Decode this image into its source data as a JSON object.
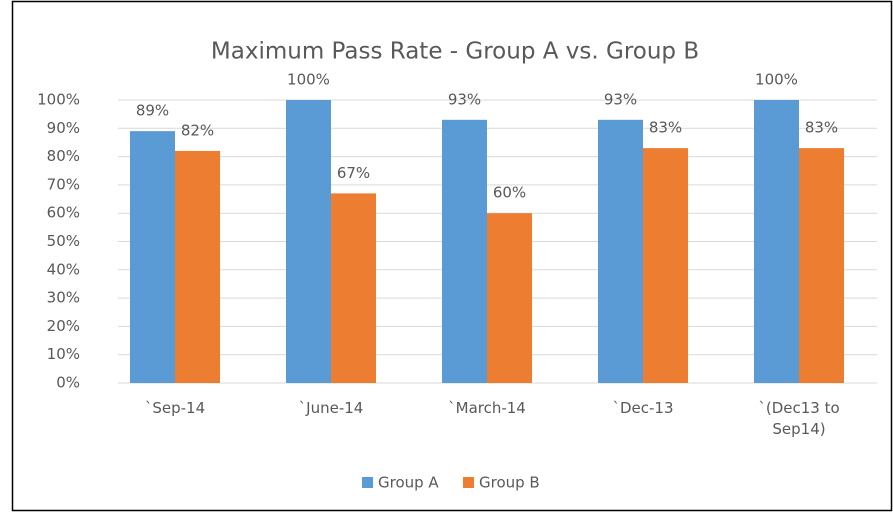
{
  "chart_data": {
    "type": "bar",
    "title": "Maximum Pass Rate - Group A vs. Group B",
    "categories": [
      "`Sep-14",
      "`June-14",
      "`March-14",
      "`Dec-13",
      "`(Dec13 to Sep14)"
    ],
    "series": [
      {
        "name": "Group A",
        "color": "#5b9bd5",
        "values": [
          89,
          100,
          93,
          93,
          100
        ],
        "value_labels": [
          "89%",
          "100%",
          "93%",
          "93%",
          "100%"
        ]
      },
      {
        "name": "Group B",
        "color": "#ed7d31",
        "values": [
          82,
          67,
          60,
          83,
          83
        ],
        "value_labels": [
          "82%",
          "67%",
          "60%",
          "83%",
          "83%"
        ]
      }
    ],
    "ylim": [
      0,
      100
    ],
    "yticks": [
      {
        "value": 0,
        "label": "0%"
      },
      {
        "value": 10,
        "label": "10%"
      },
      {
        "value": 20,
        "label": "20%"
      },
      {
        "value": 30,
        "label": "30%"
      },
      {
        "value": 40,
        "label": "40%"
      },
      {
        "value": 50,
        "label": "50%"
      },
      {
        "value": 60,
        "label": "60%"
      },
      {
        "value": 70,
        "label": "70%"
      },
      {
        "value": 80,
        "label": "80%"
      },
      {
        "value": 90,
        "label": "90%"
      },
      {
        "value": 100,
        "label": "100%"
      }
    ],
    "grid": true,
    "legend": "bottom"
  }
}
